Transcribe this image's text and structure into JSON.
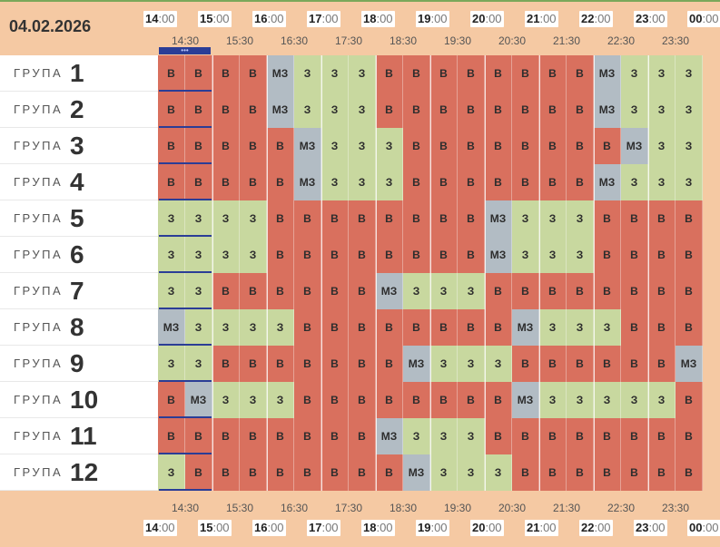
{
  "date": "04.02.2026",
  "handle_dots": "•••",
  "hours": [
    {
      "h": "14",
      "m": ":00"
    },
    {
      "h": "15",
      "m": ":00"
    },
    {
      "h": "16",
      "m": ":00"
    },
    {
      "h": "17",
      "m": ":00"
    },
    {
      "h": "18",
      "m": ":00"
    },
    {
      "h": "19",
      "m": ":00"
    },
    {
      "h": "20",
      "m": ":00"
    },
    {
      "h": "21",
      "m": ":00"
    },
    {
      "h": "22",
      "m": ":00"
    },
    {
      "h": "23",
      "m": ":00"
    },
    {
      "h": "00",
      "m": ":00"
    }
  ],
  "half_hours": [
    "14:30",
    "15:30",
    "16:30",
    "17:30",
    "18:30",
    "19:30",
    "20:30",
    "21:30",
    "22:30",
    "23:30"
  ],
  "group_word": "ГРУПА",
  "groups": [
    "1",
    "2",
    "3",
    "4",
    "5",
    "6",
    "7",
    "8",
    "9",
    "10",
    "11",
    "12"
  ],
  "legend": {
    "В": {
      "color": "#d9705e"
    },
    "З": {
      "color": "#c8d89f"
    },
    "МЗ": {
      "color": "#b2bcc4"
    }
  },
  "schedule": [
    [
      "В",
      "В",
      "В",
      "В",
      "МЗ",
      "З",
      "З",
      "З",
      "В",
      "В",
      "В",
      "В",
      "В",
      "В",
      "В",
      "В",
      "МЗ",
      "З",
      "З",
      "З"
    ],
    [
      "В",
      "В",
      "В",
      "В",
      "МЗ",
      "З",
      "З",
      "З",
      "В",
      "В",
      "В",
      "В",
      "В",
      "В",
      "В",
      "В",
      "МЗ",
      "З",
      "З",
      "З"
    ],
    [
      "В",
      "В",
      "В",
      "В",
      "В",
      "МЗ",
      "З",
      "З",
      "З",
      "В",
      "В",
      "В",
      "В",
      "В",
      "В",
      "В",
      "В",
      "МЗ",
      "З",
      "З"
    ],
    [
      "В",
      "В",
      "В",
      "В",
      "В",
      "МЗ",
      "З",
      "З",
      "З",
      "В",
      "В",
      "В",
      "В",
      "В",
      "В",
      "В",
      "МЗ",
      "З",
      "З",
      "З"
    ],
    [
      "З",
      "З",
      "З",
      "З",
      "В",
      "В",
      "В",
      "В",
      "В",
      "В",
      "В",
      "В",
      "МЗ",
      "З",
      "З",
      "З",
      "В",
      "В",
      "В",
      "В"
    ],
    [
      "З",
      "З",
      "З",
      "З",
      "В",
      "В",
      "В",
      "В",
      "В",
      "В",
      "В",
      "В",
      "МЗ",
      "З",
      "З",
      "З",
      "В",
      "В",
      "В",
      "В"
    ],
    [
      "З",
      "З",
      "В",
      "В",
      "В",
      "В",
      "В",
      "В",
      "МЗ",
      "З",
      "З",
      "З",
      "В",
      "В",
      "В",
      "В",
      "В",
      "В",
      "В",
      "В"
    ],
    [
      "МЗ",
      "З",
      "З",
      "З",
      "З",
      "В",
      "В",
      "В",
      "В",
      "В",
      "В",
      "В",
      "В",
      "МЗ",
      "З",
      "З",
      "З",
      "В",
      "В",
      "В"
    ],
    [
      "З",
      "З",
      "В",
      "В",
      "В",
      "В",
      "В",
      "В",
      "В",
      "МЗ",
      "З",
      "З",
      "З",
      "В",
      "В",
      "В",
      "В",
      "В",
      "В",
      "МЗ"
    ],
    [
      "В",
      "МЗ",
      "З",
      "З",
      "З",
      "В",
      "В",
      "В",
      "В",
      "В",
      "В",
      "В",
      "В",
      "МЗ",
      "З",
      "З",
      "З",
      "З",
      "З",
      "В"
    ],
    [
      "В",
      "В",
      "В",
      "В",
      "В",
      "В",
      "В",
      "В",
      "МЗ",
      "З",
      "З",
      "З",
      "В",
      "В",
      "В",
      "В",
      "В",
      "В",
      "В",
      "В"
    ],
    [
      "З",
      "В",
      "В",
      "В",
      "В",
      "В",
      "В",
      "В",
      "В",
      "МЗ",
      "З",
      "З",
      "З",
      "В",
      "В",
      "В",
      "В",
      "В",
      "В",
      "В"
    ]
  ]
}
